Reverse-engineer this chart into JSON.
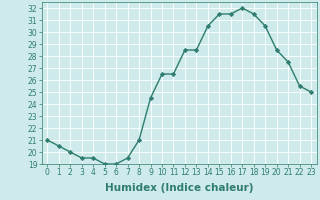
{
  "x": [
    0,
    1,
    2,
    3,
    4,
    5,
    6,
    7,
    8,
    9,
    10,
    11,
    12,
    13,
    14,
    15,
    16,
    17,
    18,
    19,
    20,
    21,
    22,
    23
  ],
  "y": [
    21.0,
    20.5,
    20.0,
    19.5,
    19.5,
    19.0,
    19.0,
    19.5,
    21.0,
    24.5,
    26.5,
    26.5,
    28.5,
    28.5,
    30.5,
    31.5,
    31.5,
    32.0,
    31.5,
    30.5,
    28.5,
    27.5,
    25.5,
    25.0
  ],
  "line_color": "#2e7d6e",
  "marker": "D",
  "marker_size": 2.2,
  "bg_color": "#ceeaea",
  "grid_color": "#ffffff",
  "xlabel": "Humidex (Indice chaleur)",
  "ylim": [
    19,
    32.5
  ],
  "xlim": [
    -0.5,
    23.5
  ],
  "yticks": [
    19,
    20,
    21,
    22,
    23,
    24,
    25,
    26,
    27,
    28,
    29,
    30,
    31,
    32
  ],
  "xticks": [
    0,
    1,
    2,
    3,
    4,
    5,
    6,
    7,
    8,
    9,
    10,
    11,
    12,
    13,
    14,
    15,
    16,
    17,
    18,
    19,
    20,
    21,
    22,
    23
  ],
  "tick_fontsize": 5.5,
  "xlabel_fontsize": 7.5,
  "xlabel_fontweight": "bold"
}
